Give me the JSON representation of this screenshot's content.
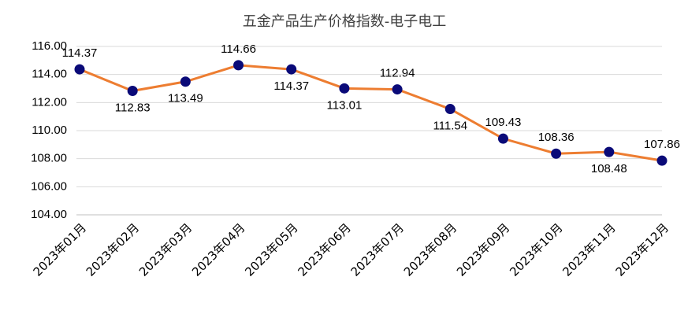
{
  "chart_data": {
    "type": "line",
    "title": "五金产品生产价格指数-电子电工",
    "categories": [
      "2023年01月",
      "2023年02月",
      "2023年03月",
      "2023年04月",
      "2023年05月",
      "2023年06月",
      "2023年07月",
      "2023年08月",
      "2023年09月",
      "2023年10月",
      "2023年11月",
      "2023年12月"
    ],
    "series": [
      {
        "name": "五金产品生产价格指数-电子电工",
        "color": "#ed7d31",
        "marker_color": "#0a0a78",
        "values": [
          114.37,
          112.83,
          113.49,
          114.66,
          114.37,
          113.01,
          112.94,
          111.54,
          109.43,
          108.36,
          108.48,
          107.86
        ]
      }
    ],
    "ylim": [
      104,
      116
    ],
    "yticks": [
      {
        "value": 104,
        "label": "104.00"
      },
      {
        "value": 106,
        "label": "106.00"
      },
      {
        "value": 108,
        "label": "108.00"
      },
      {
        "value": 110,
        "label": "110.00"
      },
      {
        "value": 112,
        "label": "112.00"
      },
      {
        "value": 114,
        "label": "114.00"
      },
      {
        "value": 116,
        "label": "116.00"
      }
    ],
    "grid": true
  }
}
